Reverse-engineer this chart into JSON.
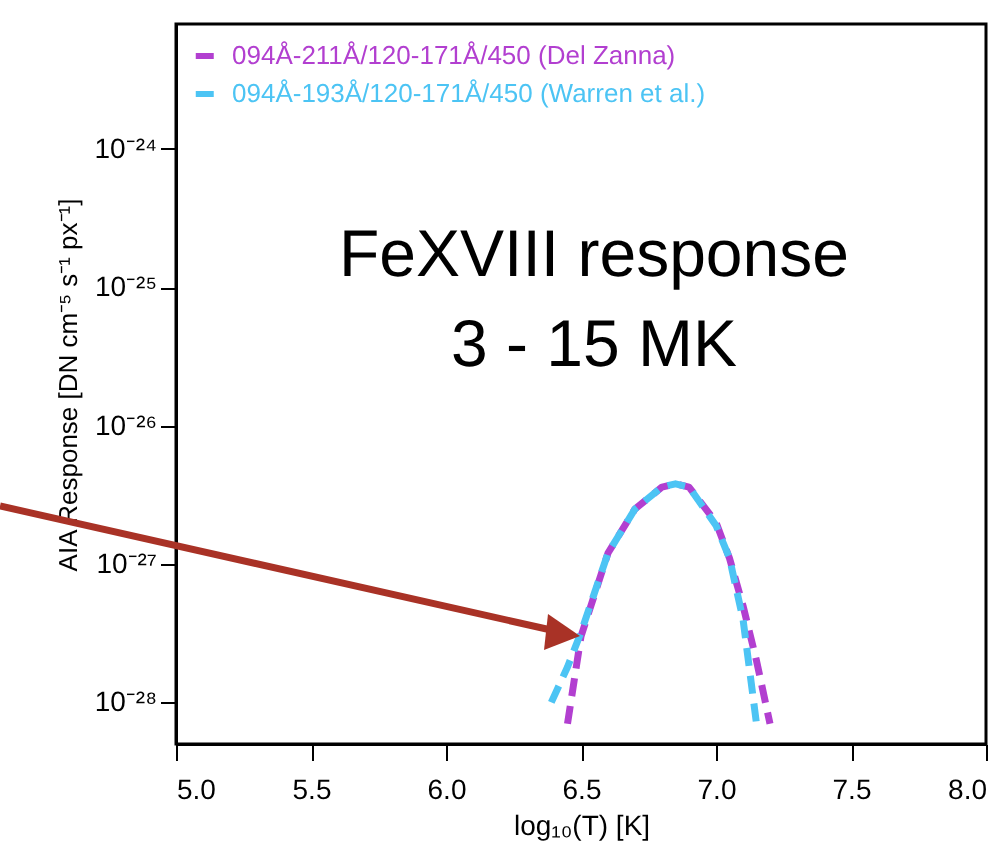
{
  "chart_data": {
    "type": "line",
    "xlabel": "log₁₀(T) [K]",
    "ylabel": "AIA Response [DN cm⁻⁵ s⁻¹ px⁻¹]",
    "annotations": [
      "FeXVIII response",
      "3 - 15 MK"
    ],
    "series": [
      {
        "name": "094Å-211Å/120-171Å/450 (Del Zanna)",
        "color": "#b23fd0",
        "line_style": "dashed",
        "x": [
          6.45,
          6.5,
          6.6,
          6.7,
          6.8,
          6.85,
          6.9,
          7.0,
          7.05,
          7.1,
          7.15,
          7.2
        ],
        "values": [
          7e-29,
          3e-28,
          1.2e-27,
          2.5e-27,
          3.6e-27,
          3.8e-27,
          3.6e-27,
          2e-27,
          1.1e-27,
          5e-28,
          2e-28,
          7e-29
        ]
      },
      {
        "name": "094Å-193Å/120-171Å/450 (Warren et al.)",
        "color": "#4cc4f4",
        "line_style": "dashed",
        "x": [
          6.39,
          6.45,
          6.5,
          6.6,
          6.7,
          6.8,
          6.85,
          6.9,
          7.0,
          7.05,
          7.1,
          7.15
        ],
        "values": [
          1e-28,
          1.8e-28,
          3.2e-28,
          1.2e-27,
          2.5e-27,
          3.6e-27,
          3.8e-27,
          3.6e-27,
          1.9e-27,
          1.1e-27,
          4e-28,
          7e-29
        ]
      }
    ],
    "xlim": [
      5,
      8
    ],
    "xticks": [
      {
        "value": 5,
        "label": "5.0"
      },
      {
        "value": 5.5,
        "label": "5.5"
      },
      {
        "value": 6,
        "label": "6.0"
      },
      {
        "value": 6.5,
        "label": "6.5"
      },
      {
        "value": 7,
        "label": "7.0"
      },
      {
        "value": 7.5,
        "label": "7.5"
      },
      {
        "value": 8,
        "label": "8.0"
      }
    ],
    "ylim": [
      5e-29,
      8e-24
    ],
    "yticks": [
      {
        "value": 1e-28,
        "label": "10⁻²⁸"
      },
      {
        "value": 1e-27,
        "label": "10⁻²⁷"
      },
      {
        "value": 1e-26,
        "label": "10⁻²⁶"
      },
      {
        "value": 1e-25,
        "label": "10⁻²⁵"
      },
      {
        "value": 1e-24,
        "label": "10⁻²⁴"
      }
    ],
    "log": "y",
    "grid": false,
    "legend": "top left"
  }
}
